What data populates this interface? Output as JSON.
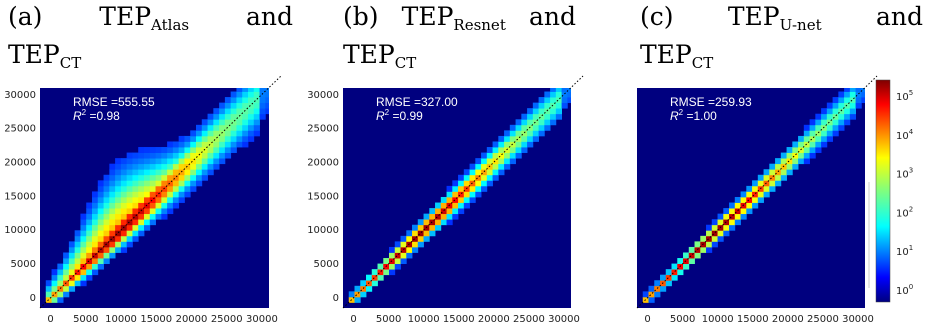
{
  "captions": [
    {
      "label": "(a)",
      "main": "TEP",
      "sub": "Atlas",
      "conj": "and",
      "second_main": "TEP",
      "second_sub": "CT"
    },
    {
      "label": "(b)",
      "main": "TEP",
      "sub": "Resnet",
      "conj": "and",
      "second_main": "TEP",
      "second_sub": "CT"
    },
    {
      "label": "(c)",
      "main": "TEP",
      "sub": "U-net",
      "conj": "and",
      "second_main": "TEP",
      "second_sub": "CT"
    }
  ],
  "colors": {
    "background": "#00007f",
    "identity_line": "#000000"
  },
  "chart_data": [
    {
      "type": "heatmap",
      "x_ticks": [
        "0",
        "5000",
        "10000",
        "15000",
        "20000",
        "25000",
        "30000"
      ],
      "y_ticks": [
        "0",
        "5000",
        "10000",
        "15000",
        "20000",
        "25000",
        "30000"
      ],
      "xlim": [
        -1500,
        31000
      ],
      "ylim": [
        -1500,
        31000
      ],
      "annotations": {
        "rmse": "RMSE =555.55",
        "r2_label": "R",
        "r2_sup": "2",
        "r2_value": " =0.98"
      },
      "spread": 1400,
      "upper_bulge": 3500
    },
    {
      "type": "heatmap",
      "x_ticks": [
        "0",
        "5000",
        "10000",
        "15000",
        "20000",
        "25000",
        "30000"
      ],
      "y_ticks": [
        "0",
        "5000",
        "10000",
        "15000",
        "20000",
        "25000",
        "30000"
      ],
      "xlim": [
        -1500,
        31000
      ],
      "ylim": [
        -1500,
        31000
      ],
      "annotations": {
        "rmse": "RMSE =327.00",
        "r2_label": "R",
        "r2_sup": "2",
        "r2_value": " =0.99"
      },
      "spread": 900,
      "upper_bulge": 0
    },
    {
      "type": "heatmap",
      "x_ticks": [
        "0",
        "5000",
        "10000",
        "15000",
        "20000",
        "25000",
        "30000"
      ],
      "y_ticks": [],
      "xlim": [
        -1500,
        31000
      ],
      "ylim": [
        -1500,
        31000
      ],
      "annotations": {
        "rmse": "RMSE =259.93",
        "r2_label": "R",
        "r2_sup": "2",
        "r2_value": " =1.00"
      },
      "spread": 750,
      "upper_bulge": 0
    }
  ],
  "colorbar": {
    "ticks": [
      {
        "base": "10",
        "exp": "5"
      },
      {
        "base": "10",
        "exp": "4"
      },
      {
        "base": "10",
        "exp": "3"
      },
      {
        "base": "10",
        "exp": "2"
      },
      {
        "base": "10",
        "exp": "1"
      },
      {
        "base": "10",
        "exp": "0"
      }
    ],
    "scale": "log",
    "colormap": "jet"
  }
}
